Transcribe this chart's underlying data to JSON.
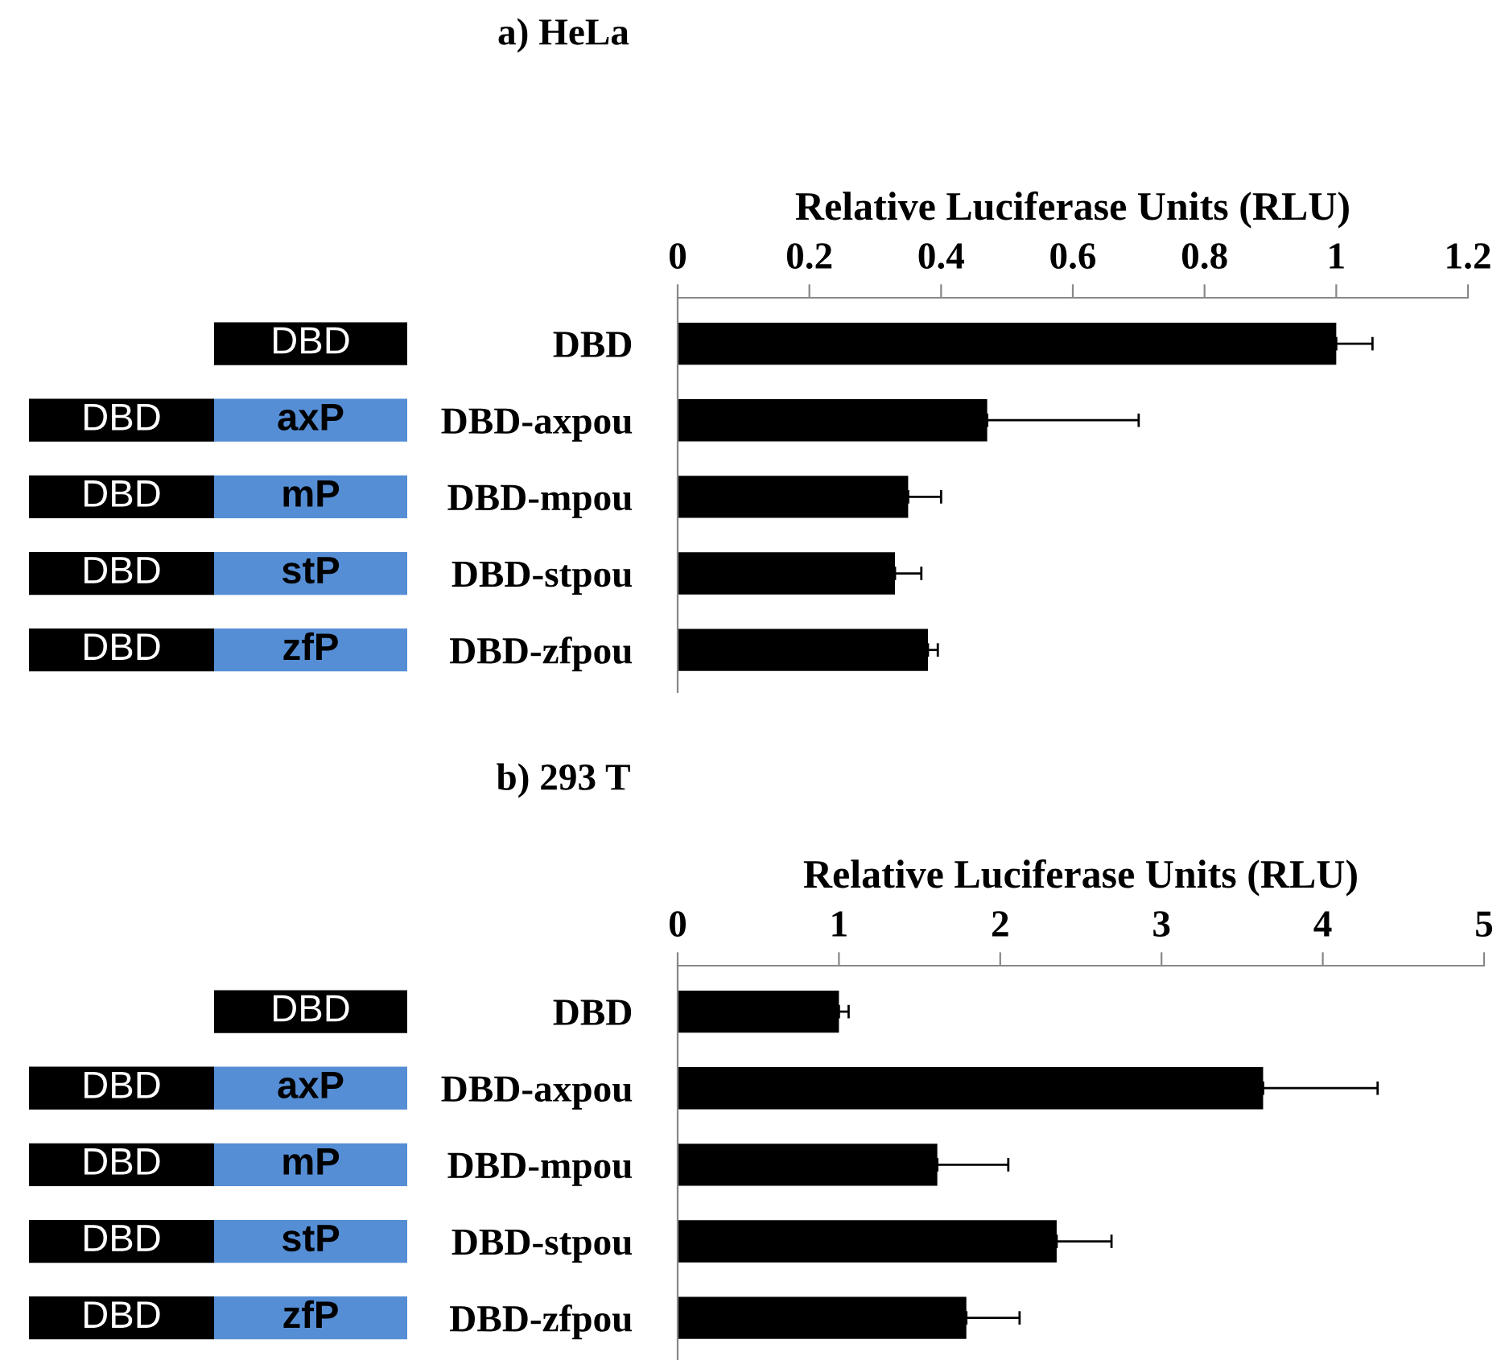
{
  "chart_data": [
    {
      "type": "bar",
      "orientation": "horizontal",
      "title": "a) HeLa",
      "xlabel": "Relative Luciferase Units (RLU)",
      "categories": [
        "DBD",
        "DBD-axpou",
        "DBD-mpou",
        "DBD-stpou",
        "DBD-zfpou"
      ],
      "values": [
        1.0,
        0.47,
        0.35,
        0.33,
        0.38
      ],
      "color": "#000000",
      "errors": [
        [
          1.0,
          1.055
        ],
        [
          0.47,
          0.7
        ],
        [
          0.35,
          0.4
        ],
        [
          0.33,
          0.37
        ],
        [
          0.38,
          0.395
        ]
      ],
      "xlim": [
        0,
        1.2
      ],
      "xticks": [
        0,
        0.2,
        0.4,
        0.6,
        0.8,
        1,
        1.2
      ],
      "grid": false,
      "legend": false,
      "annotations": [
        "DBD",
        "DBD",
        "axP",
        "DBD",
        "mP",
        "DBD",
        "stP",
        "DBD",
        "zfP"
      ]
    },
    {
      "type": "bar",
      "orientation": "horizontal",
      "title": "b) 293 T",
      "xlabel": "Relative Luciferase Units (RLU)",
      "categories": [
        "DBD",
        "DBD-axpou",
        "DBD-mpou",
        "DBD-stpou",
        "DBD-zfpou"
      ],
      "values": [
        1.0,
        3.63,
        1.61,
        2.35,
        1.79
      ],
      "color": "#000000",
      "errors": [
        [
          1.0,
          1.06
        ],
        [
          3.63,
          4.34
        ],
        [
          1.61,
          2.05
        ],
        [
          2.35,
          2.69
        ],
        [
          1.79,
          2.12
        ]
      ],
      "xlim": [
        0,
        5
      ],
      "xticks": [
        0,
        1,
        2,
        3,
        4,
        5
      ],
      "grid": false,
      "legend": false,
      "annotations": [
        "DBD",
        "DBD",
        "axP",
        "DBD",
        "mP",
        "DBD",
        "stP",
        "DBD",
        "zfP"
      ]
    }
  ]
}
